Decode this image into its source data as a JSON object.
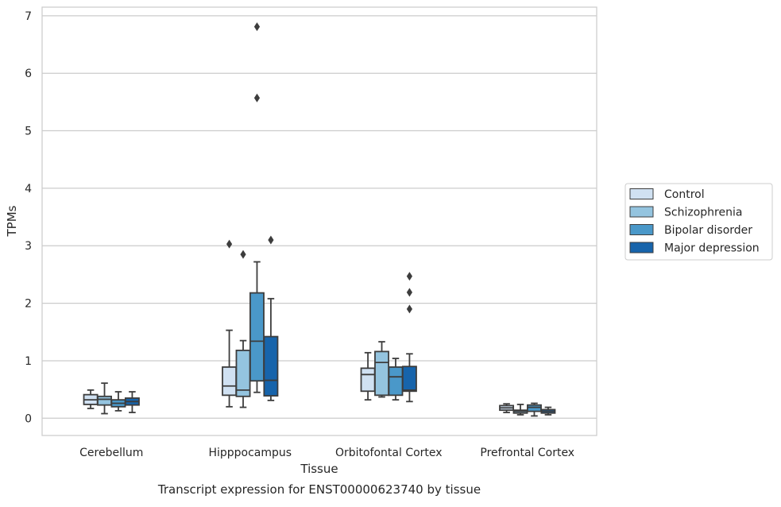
{
  "chart_data": {
    "type": "box",
    "title": "Transcript expression for ENST00000623740 by tissue",
    "xlabel": "Tissue",
    "ylabel": "TPMs",
    "ylim": [
      -0.3,
      7.15
    ],
    "yticks": [
      0,
      1,
      2,
      3,
      4,
      5,
      6,
      7
    ],
    "grid": "horizontal",
    "legend_position": "right",
    "categories": [
      "Cerebellum",
      "Hipppocampus",
      "Orbitofontal Cortex",
      "Prefrontal Cortex"
    ],
    "series": [
      {
        "name": "Control",
        "color": "#d0e1f2",
        "boxes": [
          {
            "whisker_low": 0.17,
            "q1": 0.24,
            "median": 0.32,
            "q3": 0.41,
            "whisker_high": 0.49,
            "outliers": []
          },
          {
            "whisker_low": 0.2,
            "q1": 0.4,
            "median": 0.56,
            "q3": 0.89,
            "whisker_high": 1.53,
            "outliers": [
              3.03
            ]
          },
          {
            "whisker_low": 0.32,
            "q1": 0.47,
            "median": 0.76,
            "q3": 0.87,
            "whisker_high": 1.14,
            "outliers": []
          },
          {
            "whisker_low": 0.1,
            "q1": 0.14,
            "median": 0.18,
            "q3": 0.22,
            "whisker_high": 0.25,
            "outliers": []
          }
        ]
      },
      {
        "name": "Schizophrenia",
        "color": "#94c4df",
        "boxes": [
          {
            "whisker_low": 0.08,
            "q1": 0.23,
            "median": 0.33,
            "q3": 0.38,
            "whisker_high": 0.61,
            "outliers": []
          },
          {
            "whisker_low": 0.19,
            "q1": 0.38,
            "median": 0.49,
            "q3": 1.18,
            "whisker_high": 1.35,
            "outliers": [
              2.85
            ]
          },
          {
            "whisker_low": 0.37,
            "q1": 0.4,
            "median": 0.97,
            "q3": 1.16,
            "whisker_high": 1.33,
            "outliers": []
          },
          {
            "whisker_low": 0.06,
            "q1": 0.09,
            "median": 0.12,
            "q3": 0.14,
            "whisker_high": 0.24,
            "outliers": []
          }
        ]
      },
      {
        "name": "Bipolar disorder",
        "color": "#4a98c9",
        "boxes": [
          {
            "whisker_low": 0.13,
            "q1": 0.2,
            "median": 0.26,
            "q3": 0.32,
            "whisker_high": 0.46,
            "outliers": []
          },
          {
            "whisker_low": 0.45,
            "q1": 0.65,
            "median": 1.34,
            "q3": 2.18,
            "whisker_high": 2.72,
            "outliers": [
              5.57,
              6.81
            ]
          },
          {
            "whisker_low": 0.32,
            "q1": 0.4,
            "median": 0.72,
            "q3": 0.89,
            "whisker_high": 1.04,
            "outliers": []
          },
          {
            "whisker_low": 0.04,
            "q1": 0.12,
            "median": 0.19,
            "q3": 0.23,
            "whisker_high": 0.26,
            "outliers": []
          }
        ]
      },
      {
        "name": "Major depression",
        "color": "#1764ab",
        "boxes": [
          {
            "whisker_low": 0.1,
            "q1": 0.23,
            "median": 0.29,
            "q3": 0.35,
            "whisker_high": 0.46,
            "outliers": []
          },
          {
            "whisker_low": 0.31,
            "q1": 0.39,
            "median": 0.66,
            "q3": 1.42,
            "whisker_high": 2.08,
            "outliers": [
              3.1
            ]
          },
          {
            "whisker_low": 0.29,
            "q1": 0.47,
            "median": 0.49,
            "q3": 0.9,
            "whisker_high": 1.12,
            "outliers": [
              1.9,
              2.19,
              2.47
            ]
          },
          {
            "whisker_low": 0.06,
            "q1": 0.09,
            "median": 0.12,
            "q3": 0.15,
            "whisker_high": 0.19,
            "outliers": []
          }
        ]
      }
    ]
  }
}
